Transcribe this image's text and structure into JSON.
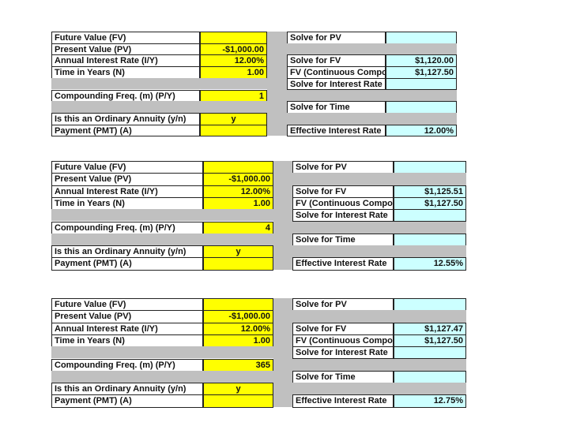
{
  "blocks": [
    {
      "rows": [
        {
          "label": "Future Value (FV)",
          "solve": "Solve for PV"
        },
        {
          "label": "Present Value (PV)",
          "input": "-$1,000.00"
        },
        {
          "label": "Annual Interest Rate (I/Y)",
          "input": "12.00%",
          "solve": "Solve for FV",
          "result": "$1,120.00"
        },
        {
          "label": "Time in Years (N)",
          "input": "1.00",
          "solve": "FV (Continuous Compo",
          "result": "$1,127.50"
        },
        {
          "solve": "Solve for Interest Rate"
        },
        {
          "label": "Compounding Freq. (m) (P/Y)",
          "input": "1"
        },
        {
          "solve": "Solve for Time"
        },
        {
          "label": "Is this an Ordinary Annuity (y/n)",
          "input": "y"
        },
        {
          "label": "Payment (PMT) (A)",
          "solve": "Effective Interest Rate",
          "result": "12.00%"
        }
      ]
    },
    {
      "rows": [
        {
          "label": "Future Value (FV)",
          "solve": "Solve for PV"
        },
        {
          "label": "Present Value (PV)",
          "input": "-$1,000.00"
        },
        {
          "label": "Annual Interest Rate (I/Y)",
          "input": "12.00%",
          "solve": "Solve for FV",
          "result": "$1,125.51"
        },
        {
          "label": "Time in Years (N)",
          "input": "1.00",
          "solve": "FV (Continuous Compo",
          "result": "$1,127.50"
        },
        {
          "solve": "Solve for Interest Rate"
        },
        {
          "label": "Compounding Freq. (m) (P/Y)",
          "input": "4"
        },
        {
          "solve": "Solve for Time"
        },
        {
          "label": "Is this an Ordinary Annuity (y/n)",
          "input": "y"
        },
        {
          "label": "Payment (PMT) (A)",
          "solve": "Effective Interest Rate",
          "result": "12.55%"
        }
      ]
    },
    {
      "rows": [
        {
          "label": "Future Value (FV)",
          "solve": "Solve for PV"
        },
        {
          "label": "Present Value (PV)",
          "input": "-$1,000.00"
        },
        {
          "label": "Annual Interest Rate (I/Y)",
          "input": "12.00%",
          "solve": "Solve for FV",
          "result": "$1,127.47"
        },
        {
          "label": "Time in Years (N)",
          "input": "1.00",
          "solve": "FV (Continuous Compo",
          "result": "$1,127.50"
        },
        {
          "solve": "Solve for Interest Rate"
        },
        {
          "label": "Compounding Freq. (m) (P/Y)",
          "input": "365"
        },
        {
          "solve": "Solve for Time"
        },
        {
          "label": "Is this an Ordinary Annuity (y/n)",
          "input": "y"
        },
        {
          "label": "Payment (PMT) (A)",
          "solve": "Effective Interest Rate",
          "result": "12.75%"
        }
      ]
    }
  ]
}
